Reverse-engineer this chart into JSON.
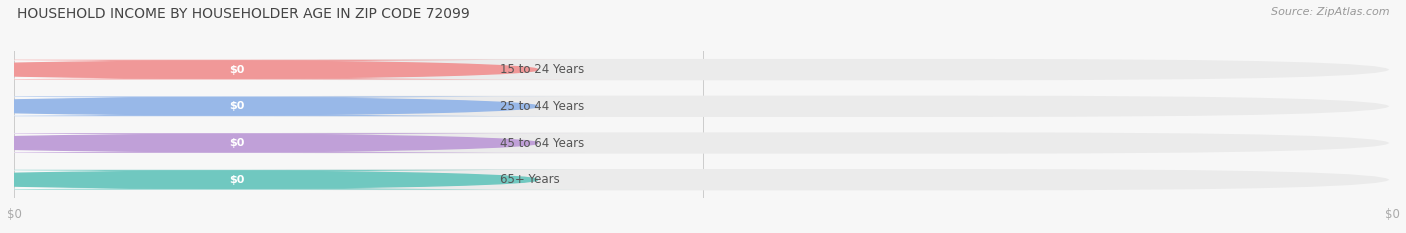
{
  "title": "HOUSEHOLD INCOME BY HOUSEHOLDER AGE IN ZIP CODE 72099",
  "source": "Source: ZipAtlas.com",
  "categories": [
    "15 to 24 Years",
    "25 to 44 Years",
    "45 to 64 Years",
    "65+ Years"
  ],
  "values": [
    0,
    0,
    0,
    0
  ],
  "bar_colors": [
    "#f09898",
    "#98b8e8",
    "#c0a0d8",
    "#70c8c0"
  ],
  "bar_bg_color": "#ebebeb",
  "white_pill_color": "#ffffff",
  "background_color": "#f7f7f7",
  "title_fontsize": 10,
  "source_fontsize": 8,
  "value_label": "$0",
  "tick_label_color": "#aaaaaa",
  "label_text_color": "#555555",
  "source_color": "#999999"
}
